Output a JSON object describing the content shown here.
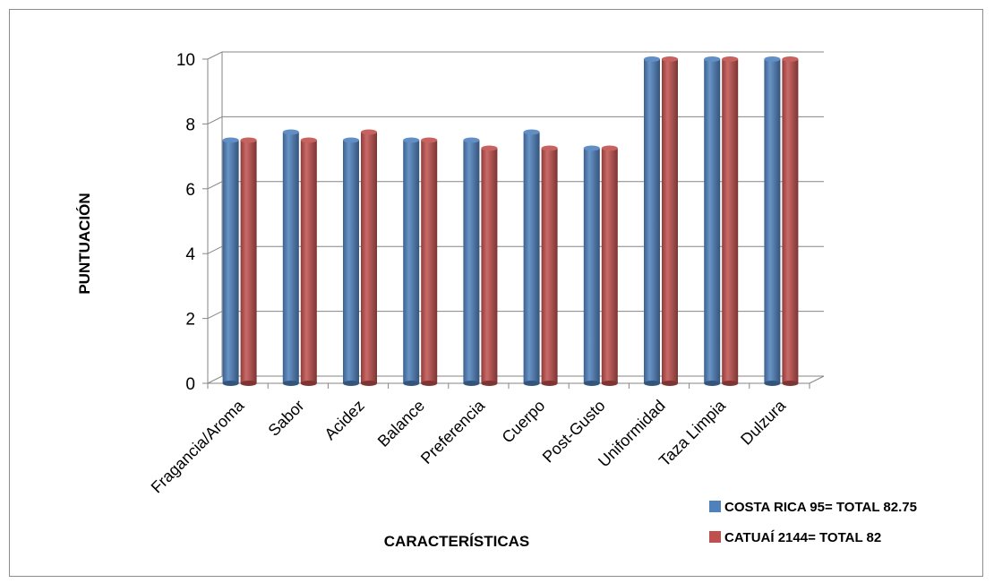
{
  "chart_data": {
    "type": "bar",
    "categories": [
      "Fragancia/Aroma",
      "Sabor",
      "Acidez",
      "Balance",
      "Preferencia",
      "Cuerpo",
      "Post-Gusto",
      "Uniformidad",
      "Taza Limpia",
      "Dulzura"
    ],
    "series": [
      {
        "name": "COSTA RICA 95= TOTAL 82.75",
        "color": "#4f81bd",
        "values": [
          7.5,
          7.75,
          7.5,
          7.5,
          7.5,
          7.75,
          7.25,
          10,
          10,
          10
        ]
      },
      {
        "name": "CATUAÍ 2144= TOTAL 82",
        "color": "#c0504d",
        "values": [
          7.5,
          7.5,
          7.75,
          7.5,
          7.25,
          7.25,
          7.25,
          10,
          10,
          10
        ]
      }
    ],
    "ylim": [
      0,
      10
    ],
    "yticks": [
      0,
      2,
      4,
      6,
      8,
      10
    ],
    "xlabel": "CARACTERÍSTICAS",
    "ylabel": "PUNTUACIÓN",
    "grid": true,
    "legend_position": "bottom-right"
  }
}
